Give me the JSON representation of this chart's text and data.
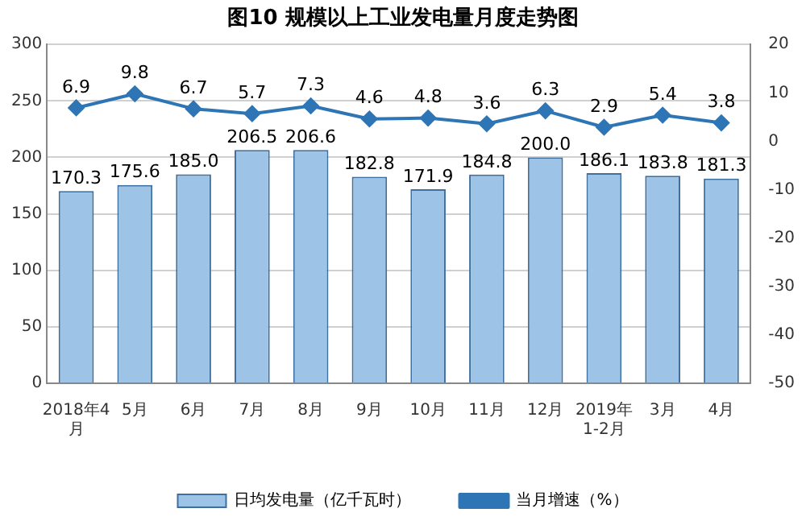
{
  "chart_data": {
    "type": "bar",
    "title": "图10 规模以上工业发电量月度走势图",
    "categories": [
      "2018年4\n月",
      "5月",
      "6月",
      "7月",
      "8月",
      "9月",
      "10月",
      "11月",
      "12月",
      "2019年\n1-2月",
      "3月",
      "4月"
    ],
    "series": [
      {
        "name": "日均发电量（亿千瓦时）",
        "color": "#9dc3e6",
        "values": [
          170.3,
          175.6,
          185.0,
          206.5,
          206.6,
          182.8,
          171.9,
          184.8,
          200.0,
          186.1,
          183.8,
          181.3
        ],
        "value_labels": [
          "170.3",
          "175.6",
          "185.0",
          "206.5",
          "206.6",
          "182.8",
          "171.9",
          "184.8",
          "200.0",
          "186.1",
          "183.8",
          "181.3"
        ]
      },
      {
        "name": "当月增速（%）",
        "type": "line",
        "axis": "y2",
        "color": "#2e75b6",
        "values": [
          6.9,
          9.8,
          6.7,
          5.7,
          7.3,
          4.6,
          4.8,
          3.6,
          6.3,
          2.9,
          5.4,
          3.8
        ],
        "value_labels": [
          "6.9",
          "9.8",
          "6.7",
          "5.7",
          "7.3",
          "4.6",
          "4.8",
          "3.6",
          "6.3",
          "2.9",
          "5.4",
          "3.8"
        ]
      }
    ],
    "ylim": [
      0,
      300
    ],
    "yticks": [
      0,
      50,
      100,
      150,
      200,
      250,
      300
    ],
    "y2lim": [
      -50,
      20
    ],
    "y2ticks": [
      -50,
      -40,
      -30,
      -20,
      -10,
      0,
      10,
      20
    ],
    "grid": "y",
    "legend": "bottom",
    "marker": "diamond",
    "line_style": "solid"
  }
}
